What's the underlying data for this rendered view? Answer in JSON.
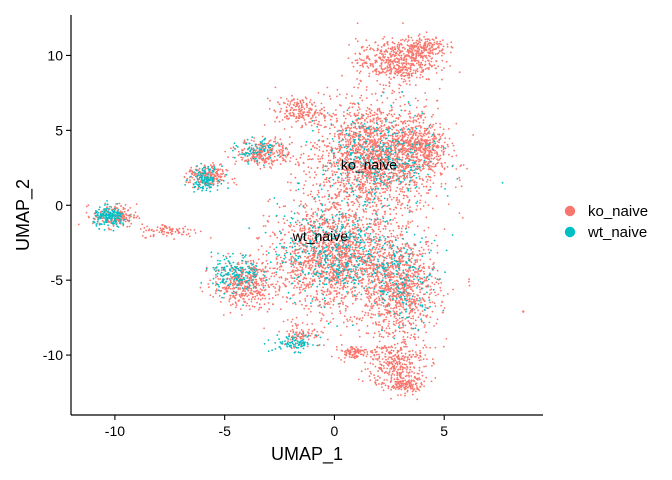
{
  "chart_data": {
    "type": "scatter",
    "xlabel": "UMAP_1",
    "ylabel": "UMAP_2",
    "xlim": [
      -12,
      9.5
    ],
    "ylim": [
      -14,
      12.7
    ],
    "xticks": [
      -10,
      -5,
      0,
      5
    ],
    "yticks": [
      -10,
      -5,
      0,
      5,
      10
    ],
    "grid": false,
    "legend_position": "right",
    "series": [
      {
        "name": "ko_naive",
        "color": "#F8766D"
      },
      {
        "name": "wt_naive",
        "color": "#00BFC4"
      }
    ],
    "cluster_labels": [
      {
        "text": "ko_naive",
        "x": 0.3,
        "y": 2.4
      },
      {
        "text": "wt_naive",
        "x": -1.9,
        "y": -2.4
      }
    ],
    "point_regions": [
      {
        "series": "ko_naive",
        "cx": 1.8,
        "cy": 3.2,
        "rx": 2.6,
        "ry": 3.4,
        "weight": 0.22
      },
      {
        "series": "ko_naive",
        "cx": 2.8,
        "cy": 9.6,
        "rx": 1.6,
        "ry": 1.3,
        "weight": 0.06
      },
      {
        "series": "ko_naive",
        "cx": 4.1,
        "cy": 10.6,
        "rx": 0.9,
        "ry": 0.6,
        "weight": 0.02
      },
      {
        "series": "ko_naive",
        "cx": 4.0,
        "cy": 3.8,
        "rx": 1.1,
        "ry": 1.5,
        "weight": 0.04
      },
      {
        "series": "ko_naive",
        "cx": 0.0,
        "cy": -3.5,
        "rx": 2.6,
        "ry": 3.2,
        "weight": 0.18
      },
      {
        "series": "ko_naive",
        "cx": 3.0,
        "cy": -5.5,
        "rx": 1.6,
        "ry": 3.0,
        "weight": 0.1
      },
      {
        "series": "ko_naive",
        "cx": 2.8,
        "cy": -10.5,
        "rx": 1.2,
        "ry": 1.6,
        "weight": 0.04
      },
      {
        "series": "ko_naive",
        "cx": 3.2,
        "cy": -12.0,
        "rx": 0.8,
        "ry": 0.5,
        "weight": 0.015
      },
      {
        "series": "ko_naive",
        "cx": -4.1,
        "cy": -5.2,
        "rx": 1.3,
        "ry": 1.4,
        "weight": 0.05
      },
      {
        "series": "ko_naive",
        "cx": -3.2,
        "cy": 3.5,
        "rx": 1.1,
        "ry": 0.8,
        "weight": 0.03
      },
      {
        "series": "ko_naive",
        "cx": -5.8,
        "cy": 1.9,
        "rx": 0.8,
        "ry": 0.7,
        "weight": 0.025
      },
      {
        "series": "ko_naive",
        "cx": -10.0,
        "cy": -0.7,
        "rx": 0.9,
        "ry": 0.7,
        "weight": 0.02
      },
      {
        "series": "ko_naive",
        "cx": -7.5,
        "cy": -1.7,
        "rx": 1.2,
        "ry": 0.4,
        "weight": 0.01
      },
      {
        "series": "ko_naive",
        "cx": -1.5,
        "cy": -8.6,
        "rx": 0.8,
        "ry": 0.8,
        "weight": 0.01
      },
      {
        "series": "ko_naive",
        "cx": 0.8,
        "cy": -9.8,
        "rx": 0.6,
        "ry": 0.4,
        "weight": 0.01
      },
      {
        "series": "ko_naive",
        "cx": -1.6,
        "cy": 6.3,
        "rx": 1.0,
        "ry": 0.8,
        "weight": 0.02
      },
      {
        "series": "wt_naive",
        "cx": 0.0,
        "cy": -3.0,
        "rx": 2.4,
        "ry": 3.0,
        "weight": 0.05
      },
      {
        "series": "wt_naive",
        "cx": -4.5,
        "cy": -4.6,
        "rx": 1.0,
        "ry": 1.2,
        "weight": 0.02
      },
      {
        "series": "wt_naive",
        "cx": -10.2,
        "cy": -0.8,
        "rx": 0.7,
        "ry": 0.6,
        "weight": 0.02
      },
      {
        "series": "wt_naive",
        "cx": -5.9,
        "cy": 1.8,
        "rx": 0.6,
        "ry": 0.7,
        "weight": 0.015
      },
      {
        "series": "wt_naive",
        "cx": -1.8,
        "cy": -9.2,
        "rx": 0.9,
        "ry": 0.5,
        "weight": 0.01
      },
      {
        "series": "wt_naive",
        "cx": 2.0,
        "cy": 3.0,
        "rx": 2.4,
        "ry": 3.0,
        "weight": 0.04
      },
      {
        "series": "wt_naive",
        "cx": -3.5,
        "cy": 3.6,
        "rx": 0.9,
        "ry": 0.7,
        "weight": 0.01
      },
      {
        "series": "wt_naive",
        "cx": 3.2,
        "cy": -5.0,
        "rx": 1.4,
        "ry": 2.6,
        "weight": 0.02
      }
    ],
    "outliers": [
      {
        "series": "ko_naive",
        "x": 8.6,
        "y": -7.1
      }
    ]
  }
}
